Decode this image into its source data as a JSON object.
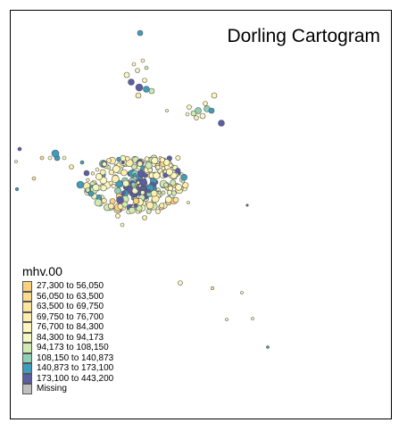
{
  "map": {
    "title": "Dorling Cartogram"
  },
  "legend": {
    "title": "mhv.00",
    "items": [
      {
        "label": "27,300 to 56,050",
        "color": "#fcd17e"
      },
      {
        "label": "56,050 to 63,500",
        "color": "#fcdc8e"
      },
      {
        "label": "63,500 to 69,750",
        "color": "#fde59c"
      },
      {
        "label": "69,750 to 76,700",
        "color": "#feeeab"
      },
      {
        "label": "76,700 to 84,300",
        "color": "#fef7bd"
      },
      {
        "label": "84,300 to 94,173",
        "color": "#f2f8c0"
      },
      {
        "label": "94,173 to 108,150",
        "color": "#cfeab0"
      },
      {
        "label": "108,150 to 140,873",
        "color": "#8fd0b5"
      },
      {
        "label": "140,873 to 173,100",
        "color": "#3e9dbb"
      },
      {
        "label": "173,100 to 443,200",
        "color": "#5a5ea6"
      },
      {
        "label": "Missing",
        "color": "#bfbfbf"
      }
    ]
  }
}
